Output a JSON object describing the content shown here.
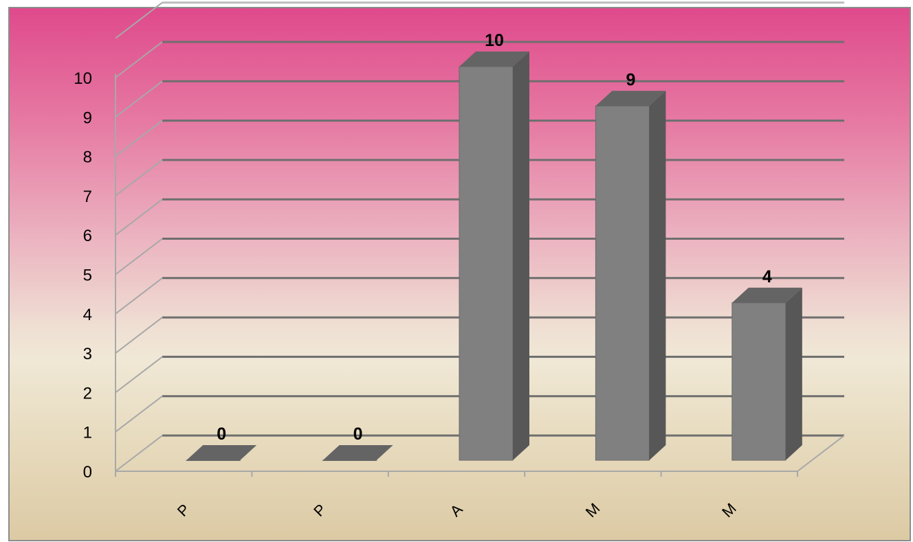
{
  "chart_data": {
    "type": "bar",
    "style": "3d-column",
    "categories": [
      "P",
      "P",
      "A",
      "M",
      "M"
    ],
    "values": [
      0,
      0,
      10,
      9,
      4
    ],
    "data_labels": [
      "0",
      "0",
      "10",
      "9",
      "4"
    ],
    "y_ticks": [
      "0",
      "1",
      "2",
      "3",
      "4",
      "5",
      "6",
      "7",
      "8",
      "9",
      "10"
    ],
    "ylim": [
      0,
      10
    ],
    "grid": true,
    "legend": "none",
    "title": "",
    "xlabel": "",
    "ylabel": "",
    "colors": {
      "bar_front": "#808080",
      "bar_side": "#575757",
      "bar_top": "#646464",
      "gridline": "#6e6e6e",
      "axis": "#a8a8a8",
      "background_top": "#df4a8c",
      "background_bottom": "#dccaa4"
    }
  }
}
